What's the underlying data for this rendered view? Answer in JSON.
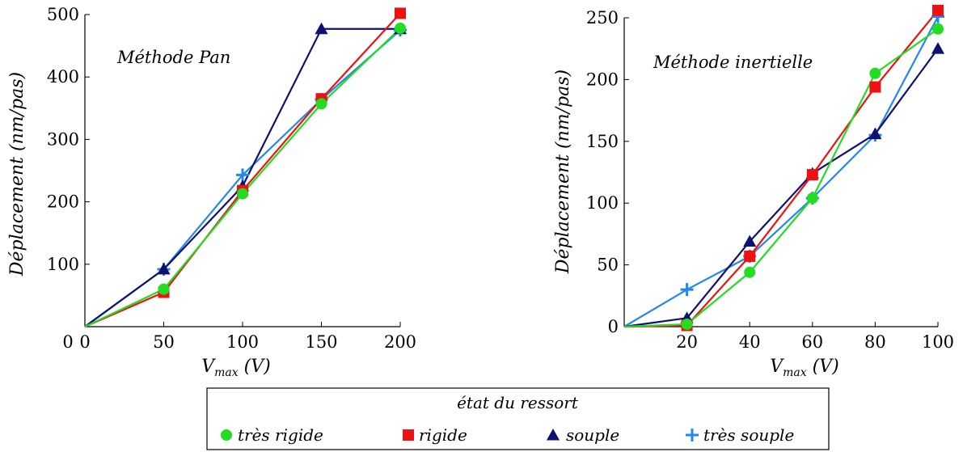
{
  "legend": {
    "title": "état du ressort",
    "entries": [
      {
        "label": "très rigide",
        "color": "#22dd22",
        "marker": "circle"
      },
      {
        "label": "rigide",
        "color": "#ee1111",
        "marker": "square"
      },
      {
        "label": "souple",
        "color": "#101070",
        "marker": "triangle"
      },
      {
        "label": "très souple",
        "color": "#2288ee",
        "marker": "plus"
      }
    ]
  },
  "chart_data": [
    {
      "type": "line",
      "title": "Méthode Pan",
      "xlabel": "V_max (V)",
      "xlabel_main": "V",
      "xlabel_sub": "max",
      "xlabel_unit": " (V)",
      "ylabel": "Déplacement (nm/pas)",
      "xlim": [
        0,
        200
      ],
      "ylim": [
        0,
        500
      ],
      "xticks": [
        0,
        50,
        100,
        150,
        200
      ],
      "yticks": [
        100,
        200,
        300,
        400,
        500
      ],
      "x_tick_labels": [
        "0",
        "50",
        "100",
        "150",
        "200"
      ],
      "y_tick_labels": [
        "100",
        "200",
        "300",
        "400",
        "500"
      ],
      "grid": false,
      "x": [
        0,
        50,
        100,
        150,
        200
      ],
      "series": [
        {
          "name": "très rigide",
          "values": [
            0,
            60,
            213,
            357,
            478
          ]
        },
        {
          "name": "rigide",
          "values": [
            0,
            55,
            218,
            365,
            502
          ]
        },
        {
          "name": "souple",
          "values": [
            0,
            92,
            225,
            477,
            477
          ]
        },
        {
          "name": "très souple",
          "values": [
            0,
            92,
            243,
            364,
            475
          ]
        }
      ]
    },
    {
      "type": "line",
      "title": "Méthode inertielle",
      "xlabel": "V_max (V)",
      "xlabel_main": "V",
      "xlabel_sub": "max",
      "xlabel_unit": " (V)",
      "ylabel": "Déplacement (nm/pas)",
      "xlim": [
        0,
        100
      ],
      "ylim": [
        0,
        250
      ],
      "xticks": [
        20,
        40,
        60,
        80,
        100
      ],
      "yticks": [
        0,
        50,
        100,
        150,
        200,
        250
      ],
      "x_tick_labels": [
        "20",
        "40",
        "60",
        "80",
        "100"
      ],
      "y_tick_labels": [
        "0",
        "50",
        "100",
        "150",
        "200",
        "250"
      ],
      "grid": false,
      "x": [
        0,
        20,
        40,
        60,
        80,
        100
      ],
      "series": [
        {
          "name": "très rigide",
          "values": [
            0,
            2,
            44,
            104,
            205,
            241
          ]
        },
        {
          "name": "rigide",
          "values": [
            0,
            1,
            57,
            123,
            194,
            256
          ]
        },
        {
          "name": "souple",
          "values": [
            0,
            7,
            69,
            124,
            156,
            225
          ]
        },
        {
          "name": "très souple",
          "values": [
            0,
            30,
            57,
            104,
            155,
            251
          ]
        }
      ]
    }
  ]
}
